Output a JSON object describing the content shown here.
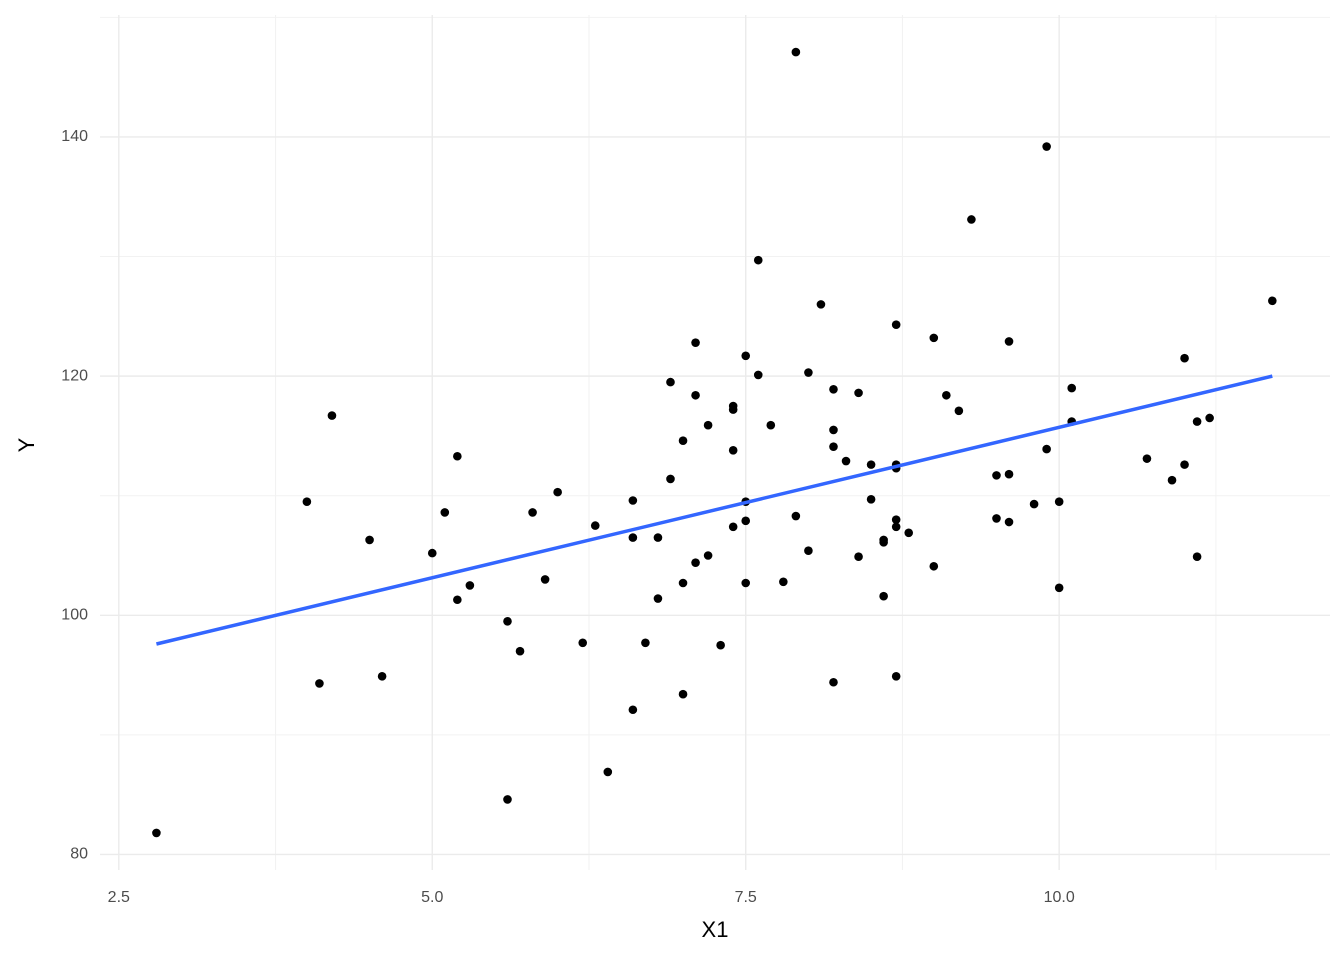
{
  "chart_data": {
    "type": "scatter",
    "x_label": "X1",
    "y_label": "Y",
    "x": [
      2.8,
      4.0,
      4.1,
      4.2,
      4.5,
      4.6,
      5.0,
      5.1,
      5.2,
      5.2,
      5.3,
      5.6,
      5.6,
      5.7,
      5.8,
      5.9,
      6.0,
      6.2,
      6.3,
      6.4,
      6.6,
      6.6,
      6.6,
      6.7,
      6.8,
      6.8,
      6.9,
      6.9,
      7.0,
      7.0,
      7.0,
      7.1,
      7.1,
      7.1,
      7.2,
      7.2,
      7.3,
      7.4,
      7.4,
      7.4,
      7.4,
      7.5,
      7.5,
      7.5,
      7.5,
      7.6,
      7.6,
      7.7,
      7.8,
      7.9,
      7.9,
      8.0,
      8.0,
      8.1,
      8.2,
      8.2,
      8.2,
      8.2,
      8.3,
      8.4,
      8.4,
      8.5,
      8.5,
      8.6,
      8.6,
      8.6,
      8.7,
      8.7,
      8.7,
      8.7,
      8.7,
      8.7,
      8.8,
      9.0,
      9.0,
      9.1,
      9.2,
      9.3,
      9.5,
      9.5,
      9.6,
      9.6,
      9.6,
      9.8,
      9.9,
      9.9,
      10.0,
      10.0,
      10.1,
      10.1,
      10.7,
      10.9,
      11.0,
      11.0,
      11.1,
      11.1,
      11.2,
      11.7
    ],
    "values": [
      81.8,
      109.5,
      94.3,
      116.7,
      106.3,
      94.9,
      105.2,
      108.6,
      113.3,
      101.3,
      102.5,
      99.5,
      84.6,
      97.0,
      108.6,
      103.0,
      110.3,
      97.7,
      107.5,
      86.9,
      109.6,
      106.5,
      92.1,
      97.7,
      106.5,
      101.4,
      119.5,
      111.4,
      114.6,
      102.7,
      93.4,
      122.8,
      118.4,
      104.4,
      115.9,
      105.0,
      97.5,
      117.5,
      117.2,
      113.8,
      107.4,
      121.7,
      109.5,
      107.9,
      102.7,
      129.7,
      120.1,
      115.9,
      102.8,
      147.1,
      108.3,
      120.3,
      105.4,
      126.0,
      118.9,
      115.5,
      114.1,
      94.4,
      112.9,
      118.6,
      104.9,
      112.6,
      109.7,
      106.3,
      106.1,
      101.6,
      124.3,
      112.6,
      112.3,
      108.0,
      107.4,
      94.9,
      106.9,
      123.2,
      104.1,
      118.4,
      117.1,
      133.1,
      111.7,
      108.1,
      122.9,
      111.8,
      107.8,
      109.3,
      139.2,
      113.9,
      109.5,
      102.3,
      119.0,
      116.2,
      113.1,
      111.3,
      121.5,
      112.6,
      116.2,
      104.9,
      116.5,
      126.3
    ],
    "color": "#000000",
    "fit": {
      "x": [
        2.8,
        11.7
      ],
      "values": [
        97.6,
        120.0
      ],
      "color": "#3366ff"
    },
    "xlim": [
      2.35,
      12.16
    ],
    "ylim": [
      78.7,
      150.2
    ],
    "xticks": [
      2.5,
      {
        "value": 5,
        "label": "5.0"
      },
      7.5,
      {
        "value": 10,
        "label": "10.0"
      }
    ],
    "yticks": [
      80,
      100,
      120,
      140
    ],
    "xminor": [
      3.75,
      6.25,
      8.75,
      11.25
    ],
    "yminor": [
      90,
      110,
      130,
      150
    ],
    "grid": true
  }
}
